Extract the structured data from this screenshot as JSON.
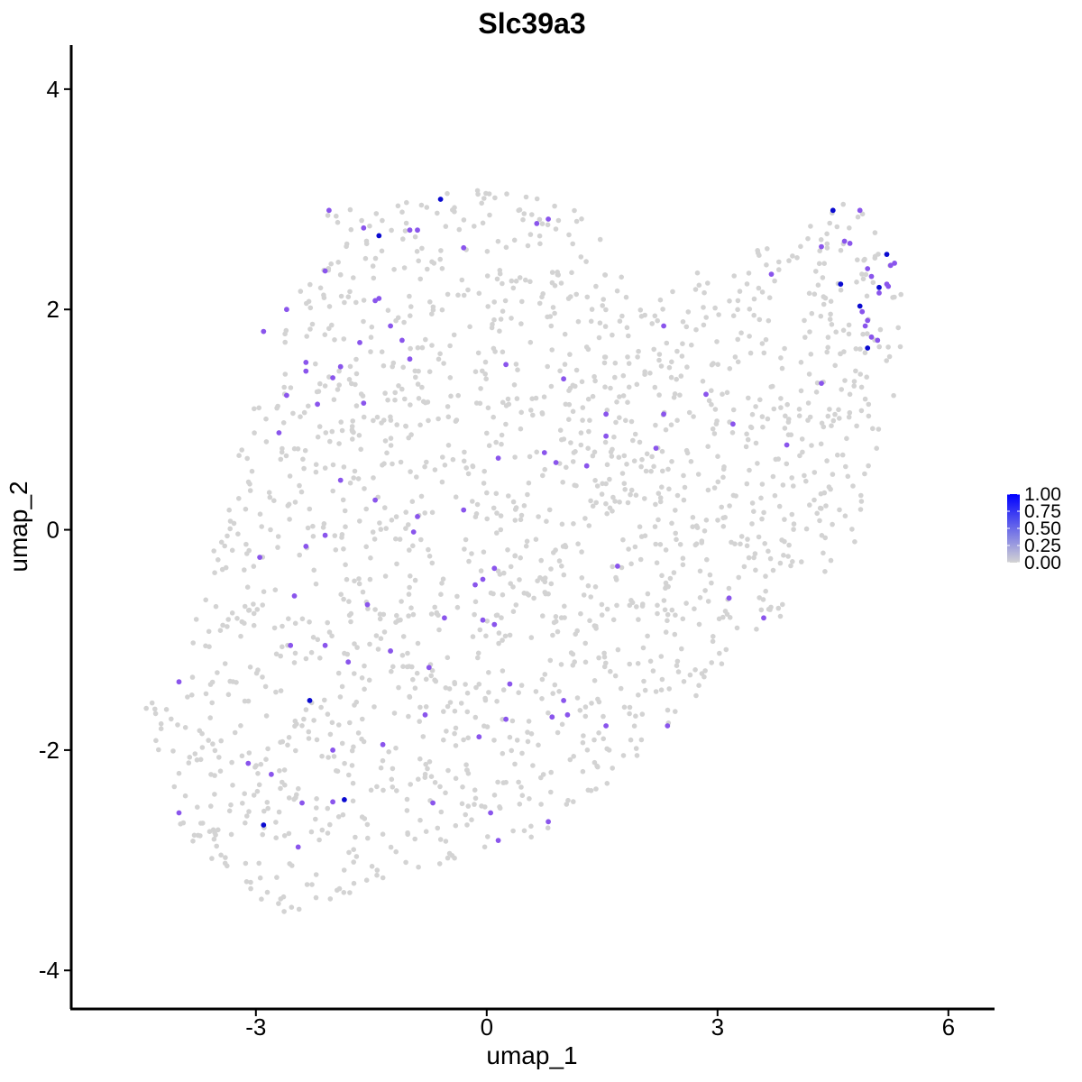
{
  "chart_data": {
    "type": "scatter",
    "title": "Slc39a3",
    "xlabel": "umap_1",
    "ylabel": "umap_2",
    "xlim": [
      -5.4,
      6.6
    ],
    "ylim": [
      -4.35,
      4.4
    ],
    "x_ticks": [
      -3,
      0,
      3,
      6
    ],
    "y_ticks": [
      -4,
      -2,
      0,
      2,
      4
    ],
    "x_tick_labels": [
      "-3",
      "0",
      "3",
      "6"
    ],
    "y_tick_labels": [
      "-4",
      "-2",
      "0",
      "2",
      "4"
    ],
    "grid": false,
    "legend": {
      "placement": "right",
      "type": "colorbar",
      "labels": [
        "1.00",
        "0.75",
        "0.50",
        "0.25",
        "0.00"
      ],
      "values": [
        1.0,
        0.75,
        0.5,
        0.25,
        0.0
      ]
    },
    "colors": {
      "low": "#d3d3d3",
      "high": "#0000ff"
    },
    "expression_range": [
      0,
      1
    ],
    "expressing_points": [
      {
        "x": -0.6,
        "y": 3.0,
        "v": 1.0
      },
      {
        "x": -2.05,
        "y": 2.9,
        "v": 0.7
      },
      {
        "x": -1.4,
        "y": 2.67,
        "v": 1.0
      },
      {
        "x": -1.6,
        "y": 2.74,
        "v": 0.65
      },
      {
        "x": -1.0,
        "y": 2.72,
        "v": 0.6
      },
      {
        "x": -0.9,
        "y": 2.72,
        "v": 0.6
      },
      {
        "x": -0.3,
        "y": 2.56,
        "v": 0.6
      },
      {
        "x": 0.65,
        "y": 2.78,
        "v": 0.6
      },
      {
        "x": 0.8,
        "y": 2.82,
        "v": 0.6
      },
      {
        "x": -2.1,
        "y": 2.35,
        "v": 0.6
      },
      {
        "x": -1.4,
        "y": 2.1,
        "v": 0.6
      },
      {
        "x": -1.45,
        "y": 2.08,
        "v": 0.6
      },
      {
        "x": -2.6,
        "y": 2.0,
        "v": 0.6
      },
      {
        "x": -2.9,
        "y": 1.8,
        "v": 0.6
      },
      {
        "x": -1.25,
        "y": 1.85,
        "v": 0.6
      },
      {
        "x": -1.1,
        "y": 1.72,
        "v": 0.6
      },
      {
        "x": -1.65,
        "y": 1.7,
        "v": 0.6
      },
      {
        "x": -2.35,
        "y": 1.52,
        "v": 0.6
      },
      {
        "x": -2.35,
        "y": 1.44,
        "v": 0.6
      },
      {
        "x": -1.9,
        "y": 1.48,
        "v": 0.6
      },
      {
        "x": -2.0,
        "y": 1.38,
        "v": 0.6
      },
      {
        "x": -1.0,
        "y": 1.55,
        "v": 0.6
      },
      {
        "x": 0.25,
        "y": 1.5,
        "v": 0.6
      },
      {
        "x": 1.0,
        "y": 1.37,
        "v": 0.6
      },
      {
        "x": -2.6,
        "y": 1.22,
        "v": 0.6
      },
      {
        "x": -2.2,
        "y": 1.14,
        "v": 0.6
      },
      {
        "x": -1.6,
        "y": 1.15,
        "v": 0.6
      },
      {
        "x": 1.55,
        "y": 1.05,
        "v": 0.6
      },
      {
        "x": 1.55,
        "y": 0.85,
        "v": 0.6
      },
      {
        "x": -2.7,
        "y": 0.88,
        "v": 0.6
      },
      {
        "x": 0.75,
        "y": 0.7,
        "v": 0.6
      },
      {
        "x": 0.9,
        "y": 0.61,
        "v": 0.6
      },
      {
        "x": 0.15,
        "y": 0.65,
        "v": 0.6
      },
      {
        "x": 1.3,
        "y": 0.58,
        "v": 0.6
      },
      {
        "x": 2.2,
        "y": 0.74,
        "v": 0.6
      },
      {
        "x": 2.3,
        "y": 1.05,
        "v": 0.6
      },
      {
        "x": 2.3,
        "y": 1.85,
        "v": 0.6
      },
      {
        "x": 2.85,
        "y": 1.23,
        "v": 0.6
      },
      {
        "x": 3.2,
        "y": 0.96,
        "v": 0.6
      },
      {
        "x": 3.9,
        "y": 0.77,
        "v": 0.6
      },
      {
        "x": 4.35,
        "y": 1.33,
        "v": 0.6
      },
      {
        "x": 3.7,
        "y": 2.32,
        "v": 0.6
      },
      {
        "x": -1.9,
        "y": 0.45,
        "v": 0.6
      },
      {
        "x": -1.45,
        "y": 0.27,
        "v": 0.6
      },
      {
        "x": -0.9,
        "y": 0.12,
        "v": 0.6
      },
      {
        "x": -0.95,
        "y": -0.02,
        "v": 0.6
      },
      {
        "x": -0.3,
        "y": 0.18,
        "v": 0.6
      },
      {
        "x": -2.1,
        "y": -0.05,
        "v": 0.6
      },
      {
        "x": -2.35,
        "y": -0.15,
        "v": 0.6
      },
      {
        "x": -2.95,
        "y": -0.25,
        "v": 0.6
      },
      {
        "x": -2.5,
        "y": -0.6,
        "v": 0.6
      },
      {
        "x": 0.1,
        "y": -0.35,
        "v": 0.6
      },
      {
        "x": -0.05,
        "y": -0.45,
        "v": 0.6
      },
      {
        "x": -0.15,
        "y": -0.5,
        "v": 0.6
      },
      {
        "x": 1.7,
        "y": -0.33,
        "v": 0.6
      },
      {
        "x": -1.55,
        "y": -0.68,
        "v": 0.6
      },
      {
        "x": -0.55,
        "y": -0.8,
        "v": 0.6
      },
      {
        "x": -0.05,
        "y": -0.82,
        "v": 0.6
      },
      {
        "x": 0.1,
        "y": -0.86,
        "v": 0.6
      },
      {
        "x": 3.15,
        "y": -0.62,
        "v": 0.6
      },
      {
        "x": 3.6,
        "y": -0.8,
        "v": 0.6
      },
      {
        "x": -2.55,
        "y": -1.05,
        "v": 0.6
      },
      {
        "x": -2.1,
        "y": -1.05,
        "v": 0.6
      },
      {
        "x": -1.25,
        "y": -1.1,
        "v": 0.6
      },
      {
        "x": -1.8,
        "y": -1.2,
        "v": 0.6
      },
      {
        "x": -0.75,
        "y": -1.25,
        "v": 0.6
      },
      {
        "x": -2.3,
        "y": -1.55,
        "v": 1.0
      },
      {
        "x": 0.3,
        "y": -1.4,
        "v": 0.6
      },
      {
        "x": 1.0,
        "y": -1.55,
        "v": 0.6
      },
      {
        "x": -0.8,
        "y": -1.68,
        "v": 0.6
      },
      {
        "x": 0.25,
        "y": -1.72,
        "v": 0.6
      },
      {
        "x": 0.85,
        "y": -1.7,
        "v": 0.6
      },
      {
        "x": 1.05,
        "y": -1.68,
        "v": 0.6
      },
      {
        "x": 1.55,
        "y": -1.78,
        "v": 0.6
      },
      {
        "x": 2.35,
        "y": -1.78,
        "v": 0.6
      },
      {
        "x": -1.35,
        "y": -1.95,
        "v": 0.6
      },
      {
        "x": -2.0,
        "y": -2.0,
        "v": 0.6
      },
      {
        "x": -0.1,
        "y": -1.88,
        "v": 0.6
      },
      {
        "x": -3.1,
        "y": -2.12,
        "v": 0.6
      },
      {
        "x": -2.8,
        "y": -2.22,
        "v": 0.6
      },
      {
        "x": -4.0,
        "y": -1.38,
        "v": 0.6
      },
      {
        "x": -1.85,
        "y": -2.45,
        "v": 1.0
      },
      {
        "x": -2.0,
        "y": -2.47,
        "v": 0.6
      },
      {
        "x": -2.4,
        "y": -2.48,
        "v": 0.6
      },
      {
        "x": -4.0,
        "y": -2.57,
        "v": 0.6
      },
      {
        "x": -2.9,
        "y": -2.68,
        "v": 1.0
      },
      {
        "x": -2.45,
        "y": -2.88,
        "v": 0.6
      },
      {
        "x": -0.7,
        "y": -2.48,
        "v": 0.6
      },
      {
        "x": 0.05,
        "y": -2.57,
        "v": 0.6
      },
      {
        "x": 0.15,
        "y": -2.82,
        "v": 0.6
      },
      {
        "x": 0.8,
        "y": -2.65,
        "v": 0.6
      },
      {
        "x": 4.5,
        "y": 2.9,
        "v": 1.0
      },
      {
        "x": 4.85,
        "y": 2.9,
        "v": 0.6
      },
      {
        "x": 4.35,
        "y": 2.57,
        "v": 0.6
      },
      {
        "x": 4.65,
        "y": 2.62,
        "v": 0.6
      },
      {
        "x": 4.72,
        "y": 2.6,
        "v": 0.6
      },
      {
        "x": 5.2,
        "y": 2.5,
        "v": 1.0
      },
      {
        "x": 5.3,
        "y": 2.42,
        "v": 0.6
      },
      {
        "x": 5.25,
        "y": 2.4,
        "v": 0.6
      },
      {
        "x": 4.95,
        "y": 2.37,
        "v": 0.6
      },
      {
        "x": 5.0,
        "y": 2.3,
        "v": 0.6
      },
      {
        "x": 4.6,
        "y": 2.23,
        "v": 1.0
      },
      {
        "x": 5.1,
        "y": 2.2,
        "v": 1.0
      },
      {
        "x": 5.2,
        "y": 2.23,
        "v": 0.6
      },
      {
        "x": 5.22,
        "y": 2.21,
        "v": 0.6
      },
      {
        "x": 5.1,
        "y": 2.15,
        "v": 0.6
      },
      {
        "x": 4.85,
        "y": 2.03,
        "v": 1.0
      },
      {
        "x": 4.88,
        "y": 1.98,
        "v": 0.6
      },
      {
        "x": 4.95,
        "y": 1.9,
        "v": 0.6
      },
      {
        "x": 4.92,
        "y": 1.85,
        "v": 0.6
      },
      {
        "x": 5.0,
        "y": 1.75,
        "v": 0.6
      },
      {
        "x": 5.08,
        "y": 1.72,
        "v": 0.6
      },
      {
        "x": 4.95,
        "y": 1.65,
        "v": 1.0
      }
    ]
  }
}
